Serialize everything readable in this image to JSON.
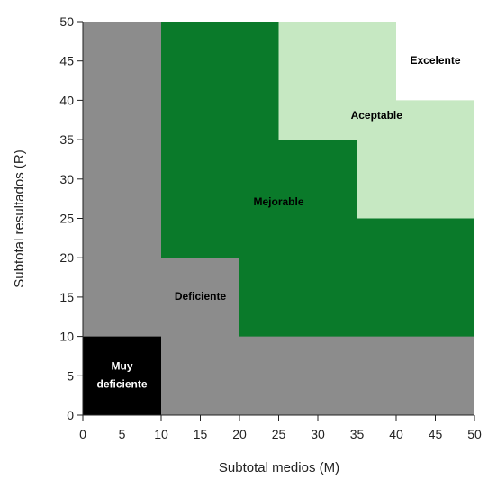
{
  "chart_data": {
    "type": "heatmap",
    "title": "",
    "xlabel": "Subtotal medios (M)",
    "ylabel": "Subtotal resultados (R)",
    "xlim": [
      0,
      50
    ],
    "ylim": [
      0,
      50
    ],
    "xticks": [
      0,
      5,
      10,
      15,
      20,
      25,
      30,
      35,
      40,
      45,
      50
    ],
    "yticks": [
      0,
      5,
      10,
      15,
      20,
      25,
      30,
      35,
      40,
      45,
      50
    ],
    "grid": false,
    "colors": {
      "deficiente": "#8c8c8c",
      "muy_deficiente": "#000000",
      "mejorable": "#0a7a2a",
      "aceptable": "#c6e8c2",
      "excelente": "#ffffff"
    },
    "regions": [
      {
        "key": "deficiente",
        "label": "Deficiente",
        "label_at": [
          15,
          15
        ],
        "label_color": "#000000",
        "polygon": [
          [
            0,
            0
          ],
          [
            50,
            0
          ],
          [
            50,
            50
          ],
          [
            0,
            50
          ]
        ]
      },
      {
        "key": "mejorable",
        "label": "Mejorable",
        "label_at": [
          25,
          27
        ],
        "label_color": "#000000",
        "polygon": [
          [
            10,
            50
          ],
          [
            50,
            50
          ],
          [
            50,
            10
          ],
          [
            20,
            10
          ],
          [
            20,
            20
          ],
          [
            10,
            20
          ]
        ]
      },
      {
        "key": "aceptable",
        "label": "Aceptable",
        "label_at": [
          37.5,
          38
        ],
        "label_color": "#000000",
        "polygon": [
          [
            25,
            50
          ],
          [
            50,
            50
          ],
          [
            50,
            25
          ],
          [
            35,
            25
          ],
          [
            35,
            35
          ],
          [
            25,
            35
          ]
        ]
      },
      {
        "key": "excelente",
        "label": "Excelente",
        "label_at": [
          45,
          45
        ],
        "label_color": "#000000",
        "polygon": [
          [
            40,
            50
          ],
          [
            50,
            50
          ],
          [
            50,
            40
          ],
          [
            40,
            40
          ]
        ]
      },
      {
        "key": "muy_deficiente",
        "label": [
          "Muy",
          "deficiente"
        ],
        "label_at": [
          5,
          5
        ],
        "label_color": "#ffffff",
        "polygon": [
          [
            0,
            0
          ],
          [
            10,
            0
          ],
          [
            10,
            10
          ],
          [
            0,
            10
          ]
        ]
      }
    ]
  }
}
